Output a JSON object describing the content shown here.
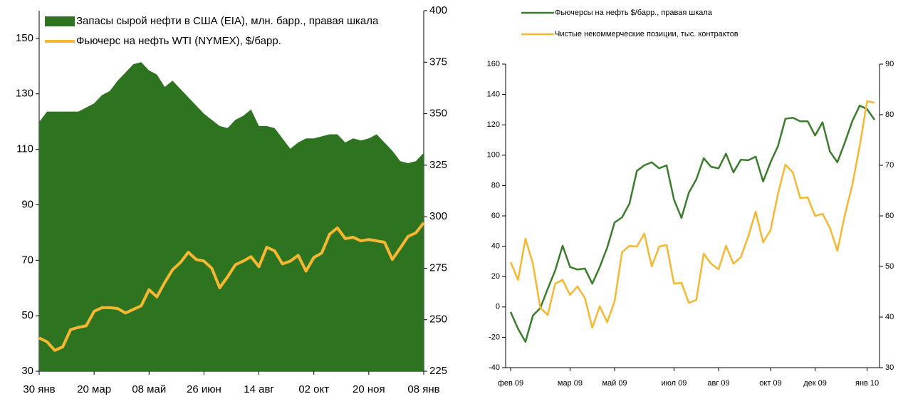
{
  "chart_data": [
    {
      "type": "combo",
      "categories": [
        "30 янв",
        null,
        null,
        null,
        null,
        null,
        null,
        "20 мар",
        null,
        null,
        null,
        null,
        null,
        null,
        "08 май",
        null,
        null,
        null,
        null,
        null,
        null,
        "26 июн",
        null,
        null,
        null,
        null,
        null,
        null,
        "14 авг",
        null,
        null,
        null,
        null,
        null,
        null,
        "02 окт",
        null,
        null,
        null,
        null,
        null,
        null,
        "20 ноя",
        null,
        null,
        null,
        null,
        null,
        null,
        "08 янв"
      ],
      "ylim": [
        30,
        160
      ],
      "yticks": [
        30,
        50,
        70,
        90,
        110,
        130,
        150
      ],
      "y2lim": [
        225,
        400
      ],
      "y2ticks": [
        225,
        250,
        275,
        300,
        325,
        350,
        375,
        400
      ],
      "series": [
        {
          "name": "Запасы сырой нефти в США (EIA), млн. барр., правая шкала",
          "type": "area",
          "axis": "y2",
          "color": "#2e7420",
          "values": [
            346,
            351,
            351,
            351,
            351,
            351,
            353,
            355,
            359,
            361,
            366,
            370,
            374,
            375,
            371,
            369,
            363,
            366,
            362,
            358,
            354,
            350,
            347,
            344,
            343,
            347,
            349,
            352,
            344,
            344,
            343,
            338,
            333,
            336,
            338,
            338,
            339,
            340,
            340,
            336,
            338,
            337,
            338,
            340,
            336,
            332,
            327,
            326,
            327,
            331
          ]
        },
        {
          "name": "Фьючерс на нефть WTI (NYMEX), $/барр.",
          "type": "line",
          "color": "#f7b731",
          "values": [
            42,
            40.6,
            37.5,
            38.8,
            45,
            45.8,
            46.4,
            51.6,
            52.9,
            52.9,
            52.6,
            51,
            52.3,
            53.6,
            59.4,
            56.8,
            62,
            66.6,
            69.2,
            72.9,
            70.3,
            69.7,
            67.1,
            60.1,
            64,
            68.4,
            69.7,
            71.3,
            67.7,
            74.7,
            73.4,
            68.7,
            69.7,
            71.8,
            66.1,
            71,
            72.6,
            79.4,
            81.7,
            77.8,
            78.3,
            77,
            77.5,
            77,
            76.5,
            70.3,
            74.4,
            78.6,
            79.9,
            83.5
          ]
        }
      ]
    },
    {
      "type": "combo",
      "categories": [
        "фев 09",
        null,
        null,
        null,
        null,
        null,
        null,
        null,
        "мар 09",
        null,
        null,
        null,
        null,
        null,
        "май 09",
        null,
        null,
        null,
        null,
        null,
        null,
        null,
        "июл 09",
        null,
        null,
        null,
        null,
        null,
        "авг 09",
        null,
        null,
        null,
        null,
        null,
        null,
        "окт 09",
        null,
        null,
        null,
        null,
        null,
        "дек 09",
        null,
        null,
        null,
        null,
        null,
        null,
        "янв 10",
        null
      ],
      "ylim": [
        -40,
        160
      ],
      "yticks": [
        -40,
        -20,
        0,
        20,
        40,
        60,
        80,
        100,
        120,
        140,
        160
      ],
      "y2lim": [
        30,
        90
      ],
      "y2ticks": [
        30,
        40,
        50,
        60,
        70,
        80,
        90
      ],
      "series": [
        {
          "name": "Фьючерсы на нефть $/барр., правая шкала",
          "type": "line",
          "axis": "y2",
          "color": "#3a7d2c",
          "values": [
            41,
            37.7,
            35.1,
            40.3,
            41.8,
            45.6,
            49.2,
            54.1,
            49.9,
            49.4,
            49.6,
            46.6,
            49.9,
            53.7,
            58.7,
            59.7,
            62.4,
            68.9,
            70,
            70.6,
            69.4,
            70,
            63.2,
            59.6,
            64.6,
            67.2,
            71.4,
            69.7,
            69.4,
            72.3,
            68.6,
            71.1,
            71,
            71.7,
            66.8,
            70.6,
            73.8,
            79.2,
            79.4,
            78.7,
            78.7,
            75.9,
            78.5,
            72.7,
            70.6,
            74.5,
            78.7,
            81.8,
            81.1,
            79
          ]
        },
        {
          "name": "Чистые некоммерческие позиции, тыс. контрактов",
          "type": "line",
          "color": "#f7b731",
          "values": [
            29.5,
            17.8,
            45,
            28.5,
            -0.6,
            -5.3,
            15.4,
            17.8,
            7.9,
            13.5,
            6,
            -13.7,
            0.4,
            -10,
            3.7,
            36,
            40.3,
            39.8,
            48.3,
            26.7,
            39.8,
            40.8,
            15.4,
            15.9,
            2.7,
            4.6,
            35.1,
            28.5,
            24.8,
            40.3,
            28.5,
            32.8,
            46.4,
            62.8,
            42.6,
            50.6,
            74.6,
            93.8,
            88.6,
            71.7,
            72.2,
            60,
            61.4,
            52,
            37,
            60.6,
            80.2,
            106,
            135.6,
            134.6
          ]
        }
      ]
    }
  ]
}
